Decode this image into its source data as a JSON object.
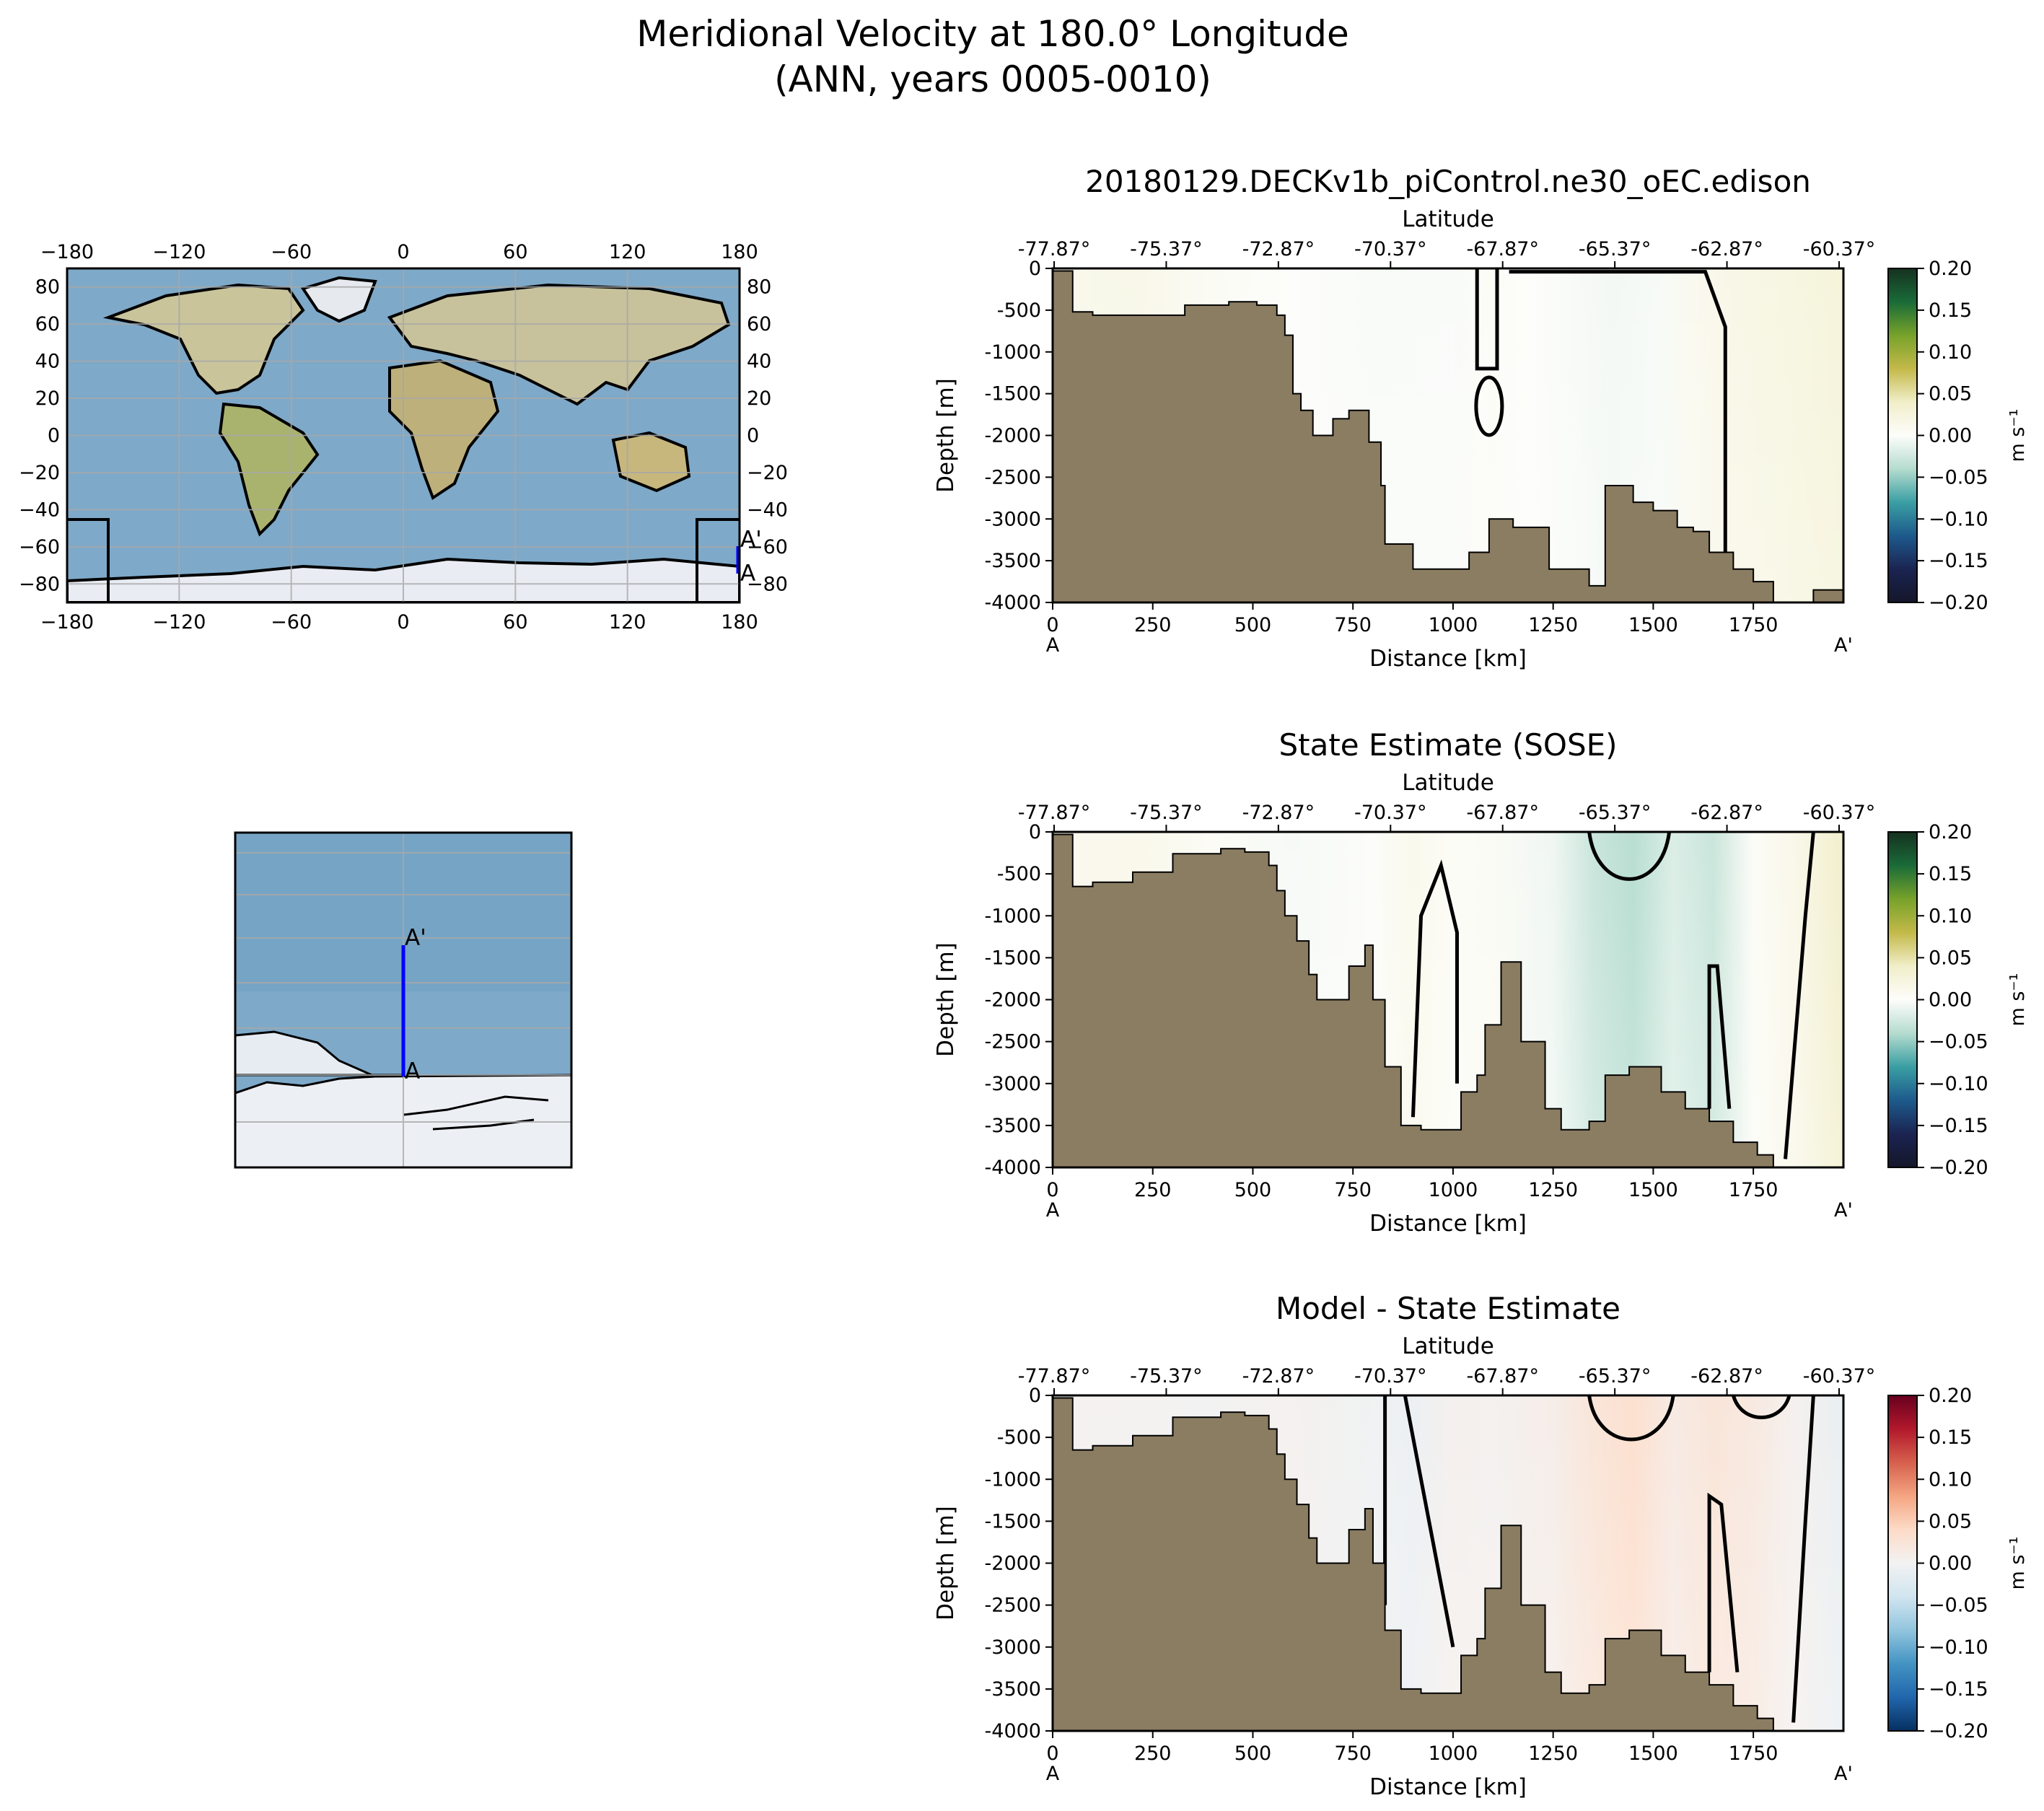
{
  "figure": {
    "title_line1": "Meridional Velocity at 180.0° Longitude",
    "title_line2": "(ANN, years 0005-0010)"
  },
  "colors": {
    "land": "#8b7d62",
    "ocean": "#7ea9c9",
    "ice": "#e9edf3",
    "transect": "#0000ff",
    "contour": "#000000"
  },
  "maps": {
    "global": {
      "x_ticks": [
        "−180",
        "−120",
        "−60",
        "0",
        "60",
        "120",
        "180"
      ],
      "y_ticks": [
        "80",
        "60",
        "40",
        "20",
        "0",
        "−20",
        "−40",
        "−60",
        "−80"
      ],
      "point_start": "A",
      "point_end": "A'"
    },
    "inset": {
      "point_start": "A",
      "point_end": "A'"
    }
  },
  "chart_data": [
    {
      "type": "heatmap",
      "title": "20180129.DECKv1b_piControl.ne30_oEC.edison",
      "xlabel": "Distance [km]",
      "ylabel": "Depth [m]",
      "top_xlabel": "Latitude",
      "x_ticks": [
        "0",
        "250",
        "500",
        "750",
        "1000",
        "1250",
        "1500",
        "1750"
      ],
      "top_ticks": [
        "-77.87°",
        "-75.37°",
        "-72.87°",
        "-70.37°",
        "-67.87°",
        "-65.37°",
        "-62.87°",
        "-60.37°"
      ],
      "y_ticks": [
        "0",
        "-500",
        "-1000",
        "-1500",
        "-2000",
        "-2500",
        "-3000",
        "-3500",
        "-4000"
      ],
      "xlim": [
        0,
        1975
      ],
      "ylim": [
        -4000,
        0
      ],
      "start_label": "A",
      "end_label": "A'",
      "colorbar": {
        "label": "m s⁻¹",
        "ticks": [
          "0.20",
          "0.15",
          "0.10",
          "0.05",
          "0.00",
          "−0.05",
          "−0.10",
          "−0.15",
          "−0.20"
        ],
        "range": [
          -0.2,
          0.2
        ],
        "colors": [
          "#15311f",
          "#1a6b38",
          "#77a22a",
          "#c3b949",
          "#f1eec9",
          "#fdfdfb",
          "#b5dccf",
          "#3a9fa3",
          "#1d5a8c",
          "#1b2452",
          "#141629"
        ]
      },
      "velocity_by_distance": {
        "distance": [
          0,
          200,
          400,
          600,
          800,
          1000,
          1100,
          1200,
          1400,
          1500,
          1600,
          1700,
          1800,
          1975
        ],
        "value": [
          0.012,
          0.016,
          0.006,
          0.0,
          -0.003,
          -0.002,
          0.004,
          0.0,
          -0.006,
          -0.004,
          0.01,
          0.018,
          0.02,
          0.028
        ]
      },
      "bathymetry": {
        "distance": [
          0,
          50,
          100,
          220,
          330,
          440,
          510,
          560,
          580,
          600,
          620,
          650,
          670,
          700,
          740,
          790,
          820,
          830,
          900,
          960,
          1040,
          1090,
          1100,
          1150,
          1200,
          1240,
          1300,
          1340,
          1380,
          1450,
          1500,
          1560,
          1600,
          1640,
          1700,
          1750,
          1800,
          1830,
          1900,
          1975
        ],
        "depth": [
          -30,
          -520,
          -560,
          -560,
          -440,
          -400,
          -440,
          -560,
          -800,
          -1500,
          -1700,
          -2000,
          -2000,
          -1800,
          -1700,
          -2080,
          -2600,
          -3300,
          -3600,
          -3600,
          -3400,
          -3000,
          -3000,
          -3100,
          -3100,
          -3600,
          -3600,
          -3800,
          -2600,
          -2800,
          -2900,
          -3100,
          -3150,
          -3400,
          -3600,
          -3750,
          -4000,
          -4000,
          -3850,
          -4000
        ]
      }
    },
    {
      "type": "heatmap",
      "title": "State Estimate (SOSE)",
      "xlabel": "Distance [km]",
      "ylabel": "Depth [m]",
      "top_xlabel": "Latitude",
      "x_ticks": [
        "0",
        "250",
        "500",
        "750",
        "1000",
        "1250",
        "1500",
        "1750"
      ],
      "top_ticks": [
        "-77.87°",
        "-75.37°",
        "-72.87°",
        "-70.37°",
        "-67.87°",
        "-65.37°",
        "-62.87°",
        "-60.37°"
      ],
      "y_ticks": [
        "0",
        "-500",
        "-1000",
        "-1500",
        "-2000",
        "-2500",
        "-3000",
        "-3500",
        "-4000"
      ],
      "xlim": [
        0,
        1975
      ],
      "ylim": [
        -4000,
        0
      ],
      "start_label": "A",
      "end_label": "A'",
      "colorbar": {
        "label": "m s⁻¹",
        "ticks": [
          "0.20",
          "0.15",
          "0.10",
          "0.05",
          "0.00",
          "−0.05",
          "−0.10",
          "−0.15",
          "−0.20"
        ],
        "range": [
          -0.2,
          0.2
        ],
        "colors": [
          "#15311f",
          "#1a6b38",
          "#77a22a",
          "#c3b949",
          "#f1eec9",
          "#fdfdfb",
          "#b5dccf",
          "#3a9fa3",
          "#1d5a8c",
          "#1b2452",
          "#141629"
        ]
      },
      "velocity_by_distance": {
        "distance": [
          0,
          200,
          400,
          600,
          800,
          900,
          1000,
          1100,
          1250,
          1350,
          1450,
          1550,
          1650,
          1750,
          1850,
          1975
        ],
        "value": [
          0.01,
          0.014,
          0.005,
          -0.004,
          0.002,
          0.012,
          0.004,
          0.006,
          -0.008,
          -0.03,
          -0.04,
          -0.02,
          -0.03,
          0.004,
          0.015,
          0.04
        ]
      },
      "bathymetry": {
        "distance": [
          0,
          50,
          100,
          200,
          300,
          420,
          480,
          540,
          560,
          580,
          610,
          640,
          660,
          700,
          740,
          780,
          800,
          830,
          870,
          920,
          990,
          1020,
          1060,
          1080,
          1120,
          1170,
          1230,
          1270,
          1340,
          1380,
          1440,
          1520,
          1580,
          1640,
          1700,
          1760,
          1800,
          1850,
          1975
        ],
        "depth": [
          -30,
          -650,
          -600,
          -480,
          -260,
          -200,
          -240,
          -400,
          -700,
          -1000,
          -1300,
          -1700,
          -2000,
          -2000,
          -1600,
          -1350,
          -2000,
          -2800,
          -3500,
          -3550,
          -3550,
          -3100,
          -2900,
          -2300,
          -1550,
          -2500,
          -3300,
          -3550,
          -3450,
          -2900,
          -2800,
          -3100,
          -3300,
          -3450,
          -3700,
          -3850,
          -4000,
          -4000,
          -3950
        ]
      }
    },
    {
      "type": "heatmap",
      "title": "Model - State Estimate",
      "xlabel": "Distance [km]",
      "ylabel": "Depth [m]",
      "top_xlabel": "Latitude",
      "x_ticks": [
        "0",
        "250",
        "500",
        "750",
        "1000",
        "1250",
        "1500",
        "1750"
      ],
      "top_ticks": [
        "-77.87°",
        "-75.37°",
        "-72.87°",
        "-70.37°",
        "-67.87°",
        "-65.37°",
        "-62.87°",
        "-60.37°"
      ],
      "y_ticks": [
        "0",
        "-500",
        "-1000",
        "-1500",
        "-2000",
        "-2500",
        "-3000",
        "-3500",
        "-4000"
      ],
      "xlim": [
        0,
        1975
      ],
      "ylim": [
        -4000,
        0
      ],
      "start_label": "A",
      "end_label": "A'",
      "colorbar": {
        "label": "m s⁻¹",
        "ticks": [
          "0.20",
          "0.15",
          "0.10",
          "0.05",
          "0.00",
          "−0.05",
          "−0.10",
          "−0.15",
          "−0.20"
        ],
        "range": [
          -0.2,
          0.2
        ],
        "colors": [
          "#67001f",
          "#b2182b",
          "#d6604d",
          "#f4a582",
          "#fddbc7",
          "#f2f2f2",
          "#d1e5f0",
          "#92c5de",
          "#4393c3",
          "#2166ac",
          "#053061"
        ]
      },
      "velocity_by_distance": {
        "distance": [
          0,
          200,
          400,
          600,
          800,
          900,
          1000,
          1100,
          1250,
          1350,
          1450,
          1550,
          1650,
          1750,
          1850,
          1975
        ],
        "value": [
          0.003,
          0.002,
          0.001,
          0.004,
          -0.004,
          -0.008,
          0.006,
          0.004,
          0.01,
          0.025,
          0.035,
          0.015,
          0.025,
          0.018,
          0.006,
          -0.012
        ]
      },
      "bathymetry": {
        "distance": [
          0,
          50,
          100,
          200,
          300,
          420,
          480,
          540,
          560,
          580,
          610,
          640,
          660,
          700,
          740,
          780,
          800,
          830,
          870,
          920,
          990,
          1020,
          1060,
          1080,
          1120,
          1170,
          1230,
          1270,
          1340,
          1380,
          1440,
          1520,
          1580,
          1640,
          1700,
          1760,
          1800,
          1850,
          1975
        ],
        "depth": [
          -30,
          -650,
          -600,
          -480,
          -260,
          -200,
          -240,
          -400,
          -700,
          -1000,
          -1300,
          -1700,
          -2000,
          -2000,
          -1600,
          -1350,
          -2000,
          -2800,
          -3500,
          -3550,
          -3550,
          -3100,
          -2900,
          -2300,
          -1550,
          -2500,
          -3300,
          -3550,
          -3450,
          -2900,
          -2800,
          -3100,
          -3300,
          -3450,
          -3700,
          -3850,
          -4000,
          -4000,
          -3950
        ]
      }
    }
  ]
}
